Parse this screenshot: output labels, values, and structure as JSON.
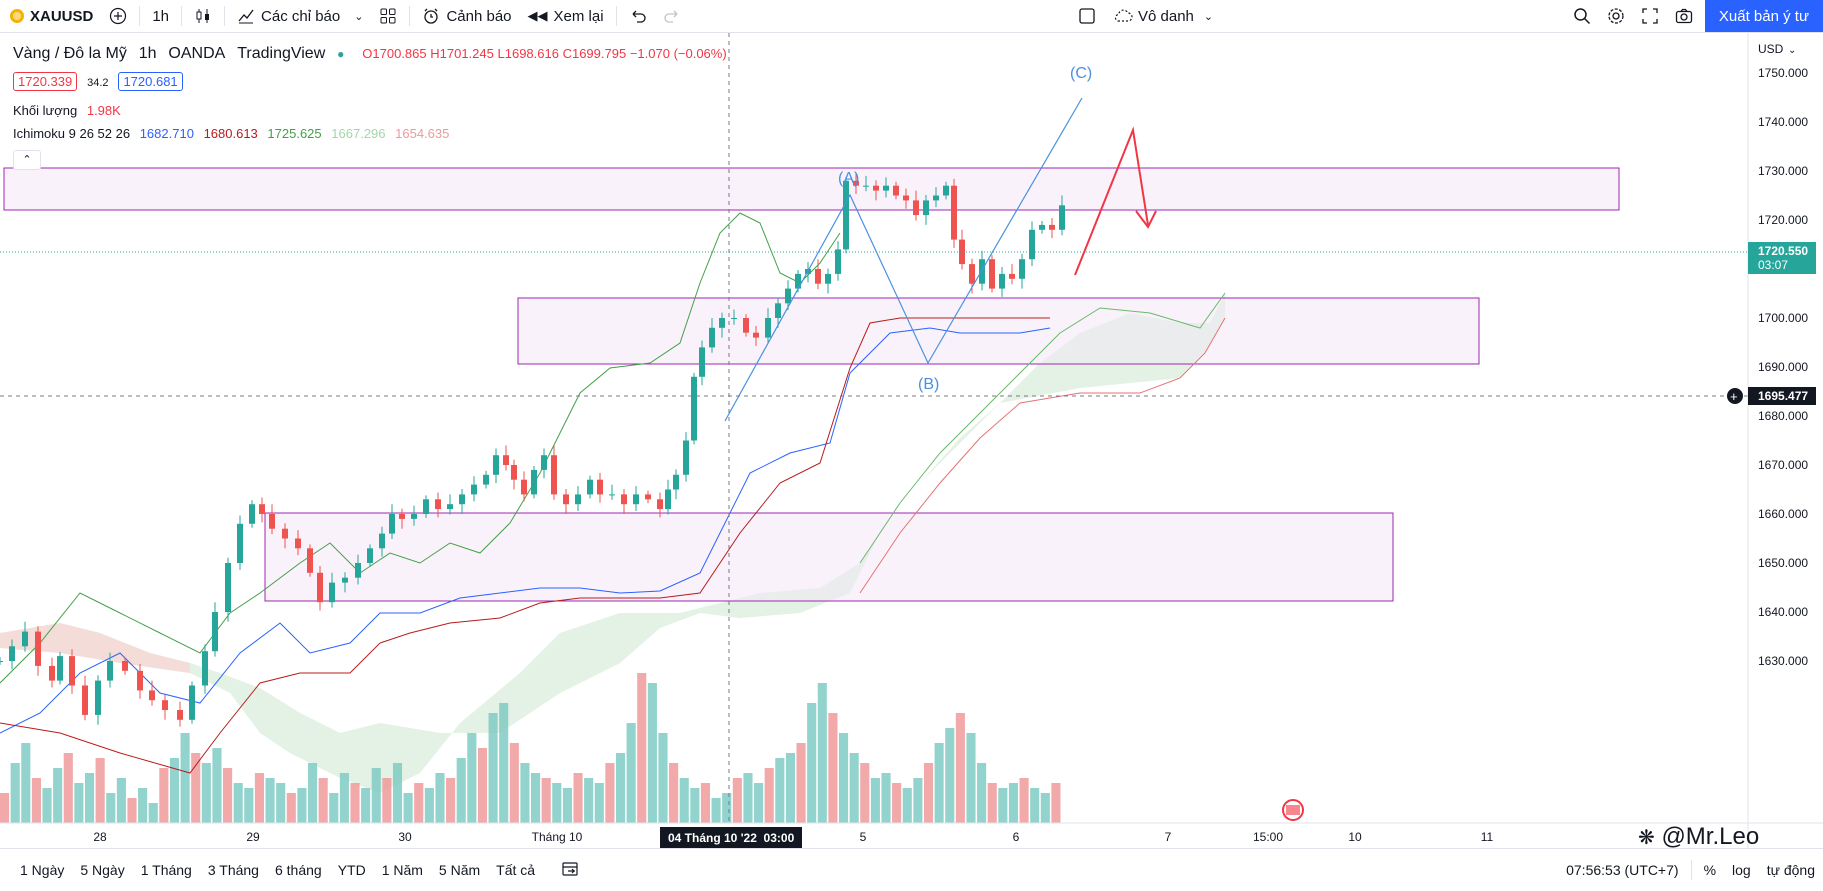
{
  "toolbar": {
    "symbol": "XAUUSD",
    "interval": "1h",
    "indicators": "Các chỉ báo",
    "alerts": "Cảnh báo",
    "replay": "Xem lại",
    "layout_name": "Vô danh",
    "publish": "Xuất bản ý tư"
  },
  "legend": {
    "title": "Vàng / Đô la Mỹ",
    "interval": "1h",
    "broker": "OANDA",
    "platform": "TradingView",
    "open": "O1700.865",
    "high": "H1701.245",
    "low": "L1698.616",
    "close": "C1699.795",
    "change": "−1.070 (−0.06%)",
    "bid": "1720.339",
    "spread": "34.2",
    "ask": "1720.681",
    "volume_label": "Khối lượng",
    "volume_value": "1.98K",
    "ichimoku_label": "Ichimoku 9 26 52 26",
    "ichi_v1": "1682.710",
    "ichi_v2": "1680.613",
    "ichi_v3": "1725.625",
    "ichi_v4": "1667.296",
    "ichi_v5": "1654.635"
  },
  "price_axis": {
    "currency": "USD",
    "ticks": [
      "1750.000",
      "1740.000",
      "1730.000",
      "1720.000",
      "1710.000",
      "1700.000",
      "1690.000",
      "1680.000",
      "1670.000",
      "1660.000",
      "1650.000",
      "1640.000",
      "1630.000"
    ],
    "last_price": "1720.550",
    "countdown": "03:07",
    "crosshair_price": "1695.477"
  },
  "time_axis": {
    "ticks": [
      "28",
      "29",
      "30",
      "Tháng 10",
      "5",
      "6",
      "7",
      "15:00",
      "10",
      "11"
    ],
    "crosshair_time": "04 Tháng 10 '22  03:00"
  },
  "annotations": {
    "wave_a": "(A)",
    "wave_b": "(B)",
    "wave_c": "(C)"
  },
  "bottom": {
    "ranges": [
      "1 Ngày",
      "5 Ngày",
      "1 Tháng",
      "3 Tháng",
      "6 tháng",
      "YTD",
      "1 Năm",
      "5 Năm",
      "Tất cả"
    ],
    "clock": "07:56:53 (UTC+7)",
    "percent": "%",
    "log": "log",
    "auto": "tự động"
  },
  "watermark": "@Mr.Leo",
  "colors": {
    "up": "#26a69a",
    "down": "#ef5350",
    "accent": "#2962ff",
    "zone": "#9c27b0",
    "arrow": "#f23645"
  }
}
